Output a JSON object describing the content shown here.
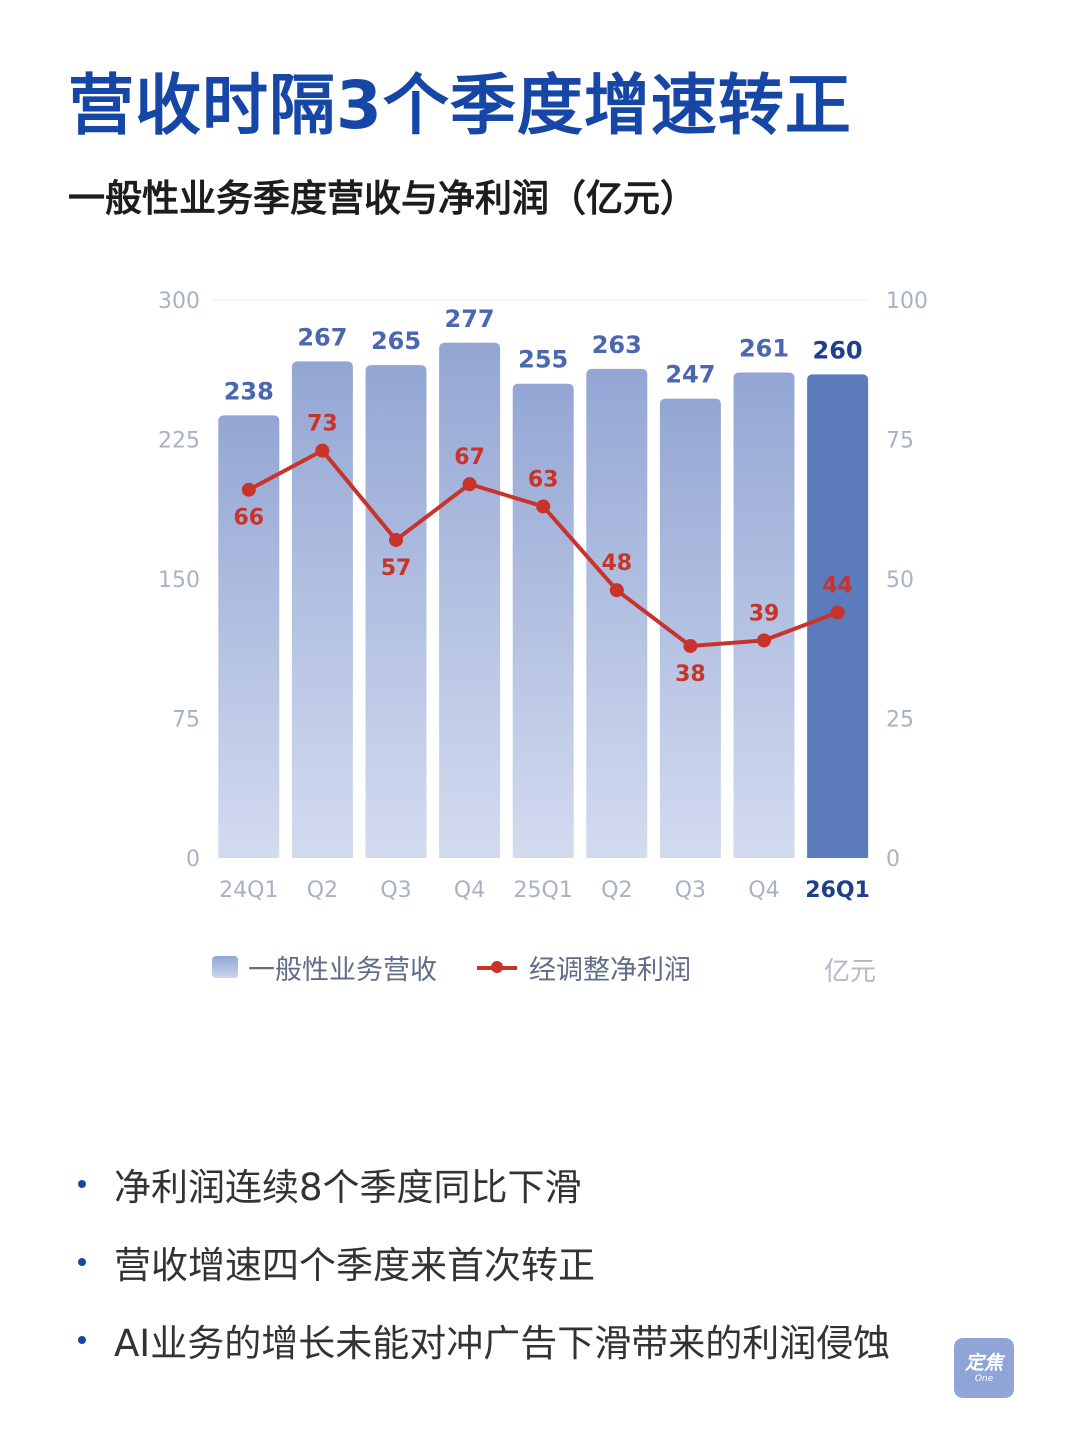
{
  "headline": "营收时隔3个季度增速转正",
  "subtitle": "一般性业务季度营收与净利润（亿元）",
  "chart_data": {
    "type": "bar",
    "categories": [
      "24Q1",
      "Q2",
      "Q3",
      "Q4",
      "25Q1",
      "Q2",
      "Q3",
      "Q4",
      "26Q1"
    ],
    "series": [
      {
        "name": "一般性业务营收",
        "type": "bar",
        "axis": "left",
        "values": [
          238,
          267,
          265,
          277,
          255,
          263,
          247,
          261,
          260
        ]
      },
      {
        "name": "经调整净利润",
        "type": "line",
        "axis": "right",
        "values": [
          66,
          73,
          57,
          67,
          63,
          48,
          38,
          39,
          44
        ]
      }
    ],
    "y_left": {
      "range": [
        0,
        300
      ],
      "ticks": [
        "0",
        "75",
        "150",
        "225",
        "300"
      ]
    },
    "y_right": {
      "range": [
        0,
        100
      ],
      "ticks": [
        "0",
        "25",
        "50",
        "75",
        "100"
      ]
    },
    "highlight_category_index": 8,
    "unit_label": "亿元",
    "legend_position": "bottom",
    "grid": "top line only",
    "colors": {
      "bar_gradient_top": "#93a6d4",
      "bar_gradient_bottom": "#d3dbef",
      "highlight_bar": "#5b7bbd",
      "bar_label": "#4a67b0",
      "highlight_label": "#1f3f8c",
      "line": "#c8332c",
      "tick": "#a9b1c4",
      "highlight_tick": "#1f3f8c"
    }
  },
  "bullets": [
    "净利润连续8个季度同比下滑",
    "营收增速四个季度来首次转正",
    "AI业务的增长未能对冲广告下滑带来的利润侵蚀"
  ],
  "logo": {
    "main": "定焦",
    "sub": "One"
  }
}
